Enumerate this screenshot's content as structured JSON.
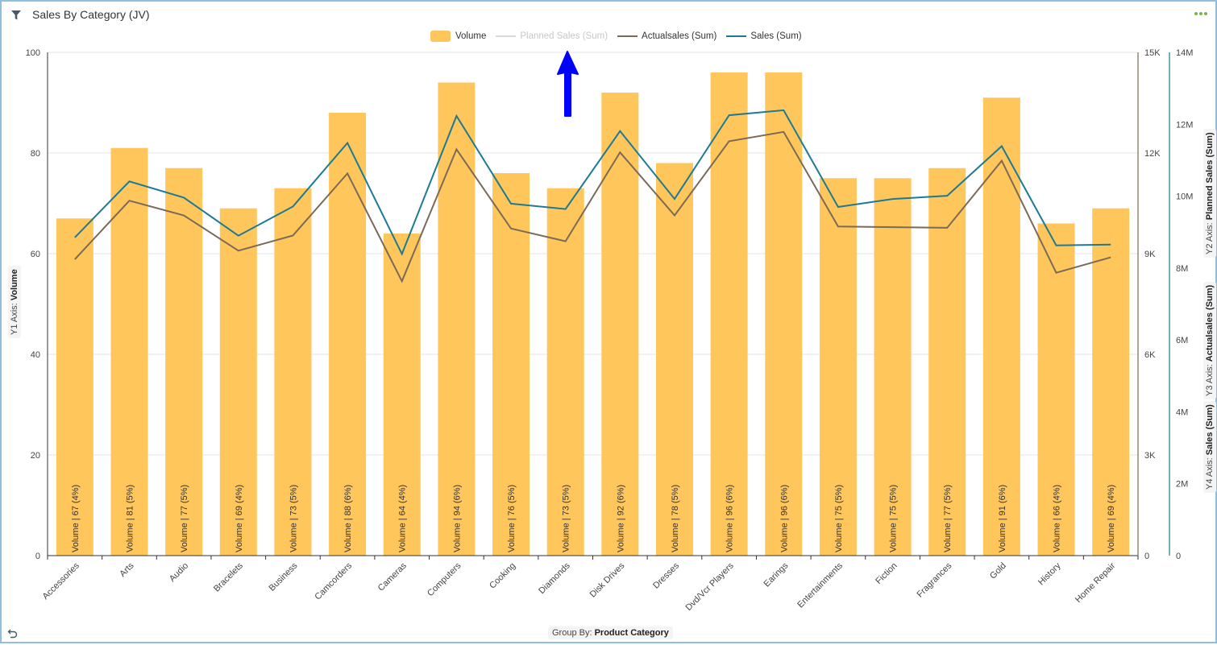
{
  "widget": {
    "title": "Sales By Category (JV)",
    "filter_icon": "filter-icon",
    "more_icon": "more-options-icon",
    "undo_icon": "undo-icon"
  },
  "legend": [
    {
      "label": "Volume",
      "type": "bar",
      "color": "#FFC65C",
      "enabled": true
    },
    {
      "label": "Planned Sales (Sum)",
      "type": "line",
      "color": "#d9d9d9",
      "enabled": false
    },
    {
      "label": "Actualsales (Sum)",
      "type": "line",
      "color": "#7a6a57",
      "enabled": true
    },
    {
      "label": "Sales (Sum)",
      "type": "line",
      "color": "#1d7a94",
      "enabled": true
    }
  ],
  "axes": {
    "y1": {
      "prefix": "Y1 Axis: ",
      "name": "Volume",
      "ticks": [
        "0",
        "20",
        "40",
        "60",
        "80",
        "100"
      ]
    },
    "y2": {
      "prefix": "Y2 Axis: ",
      "name": "Planned Sales (Sum)"
    },
    "y3": {
      "prefix": "Y3 Axis: ",
      "name": "Actualsales (Sum)",
      "ticks": [
        "0",
        "3K",
        "6K",
        "9K",
        "12K",
        "15K"
      ]
    },
    "y4": {
      "prefix": "Y4 Axis: ",
      "name": "Sales (Sum)",
      "ticks": [
        "0",
        "2M",
        "4M",
        "6M",
        "8M",
        "10M",
        "12M",
        "14M"
      ]
    }
  },
  "group_by": {
    "prefix": "Group By: ",
    "value": "Product Category"
  },
  "chart_data": {
    "type": "bar+line",
    "title": "Sales By Category (JV)",
    "xlabel": "Product Category",
    "categories": [
      "Accessories",
      "Arts",
      "Audio",
      "Bracelets",
      "Business",
      "Camcorders",
      "Cameras",
      "Computers",
      "Cooking",
      "Diamonds",
      "Disk Drives",
      "Dresses",
      "Dvd/Vcr Players",
      "Earings",
      "Entertainments",
      "Fiction",
      "Fragrances",
      "Gold",
      "History",
      "Home Repair"
    ],
    "series": [
      {
        "name": "Volume",
        "type": "bar",
        "axis": "y1",
        "ylim": [
          0,
          100
        ],
        "values": [
          67,
          81,
          77,
          69,
          73,
          88,
          64,
          94,
          76,
          73,
          92,
          78,
          96,
          96,
          75,
          75,
          77,
          91,
          66,
          69
        ],
        "labels": [
          "Volume | 67 (4%)",
          "Volume | 81 (5%)",
          "Volume | 77 (5%)",
          "Volume | 69 (4%)",
          "Volume | 73 (5%)",
          "Volume | 88 (6%)",
          "Volume | 64 (4%)",
          "Volume | 94 (6%)",
          "Volume | 76 (5%)",
          "Volume | 73 (5%)",
          "Volume | 92 (6%)",
          "Volume | 78 (5%)",
          "Volume | 96 (6%)",
          "Volume | 96 (6%)",
          "Volume | 75 (5%)",
          "Volume | 75 (5%)",
          "Volume | 77 (5%)",
          "Volume | 91 (6%)",
          "Volume | 66 (4%)",
          "Volume | 69 (4%)"
        ]
      },
      {
        "name": "Planned Sales (Sum)",
        "type": "line",
        "axis": "y2",
        "hidden": true,
        "values": []
      },
      {
        "name": "Actualsales (Sum)",
        "type": "line",
        "axis": "y3",
        "ylim": [
          0,
          15000
        ],
        "values": [
          8830,
          10580,
          10140,
          9090,
          9540,
          11390,
          8180,
          12110,
          9750,
          9370,
          12020,
          10140,
          12350,
          12630,
          9810,
          9790,
          9770,
          11770,
          8430,
          8890
        ]
      },
      {
        "name": "Sales (Sum)",
        "type": "line",
        "axis": "y4",
        "ylim": [
          0,
          14000000
        ],
        "values": [
          8850000,
          10410000,
          9960000,
          8900000,
          9710000,
          11480000,
          8390000,
          12230000,
          9790000,
          9640000,
          11810000,
          9920000,
          12250000,
          12390000,
          9700000,
          9920000,
          10010000,
          11390000,
          8630000,
          8650000
        ]
      }
    ],
    "grid": true,
    "legend_position": "top"
  }
}
